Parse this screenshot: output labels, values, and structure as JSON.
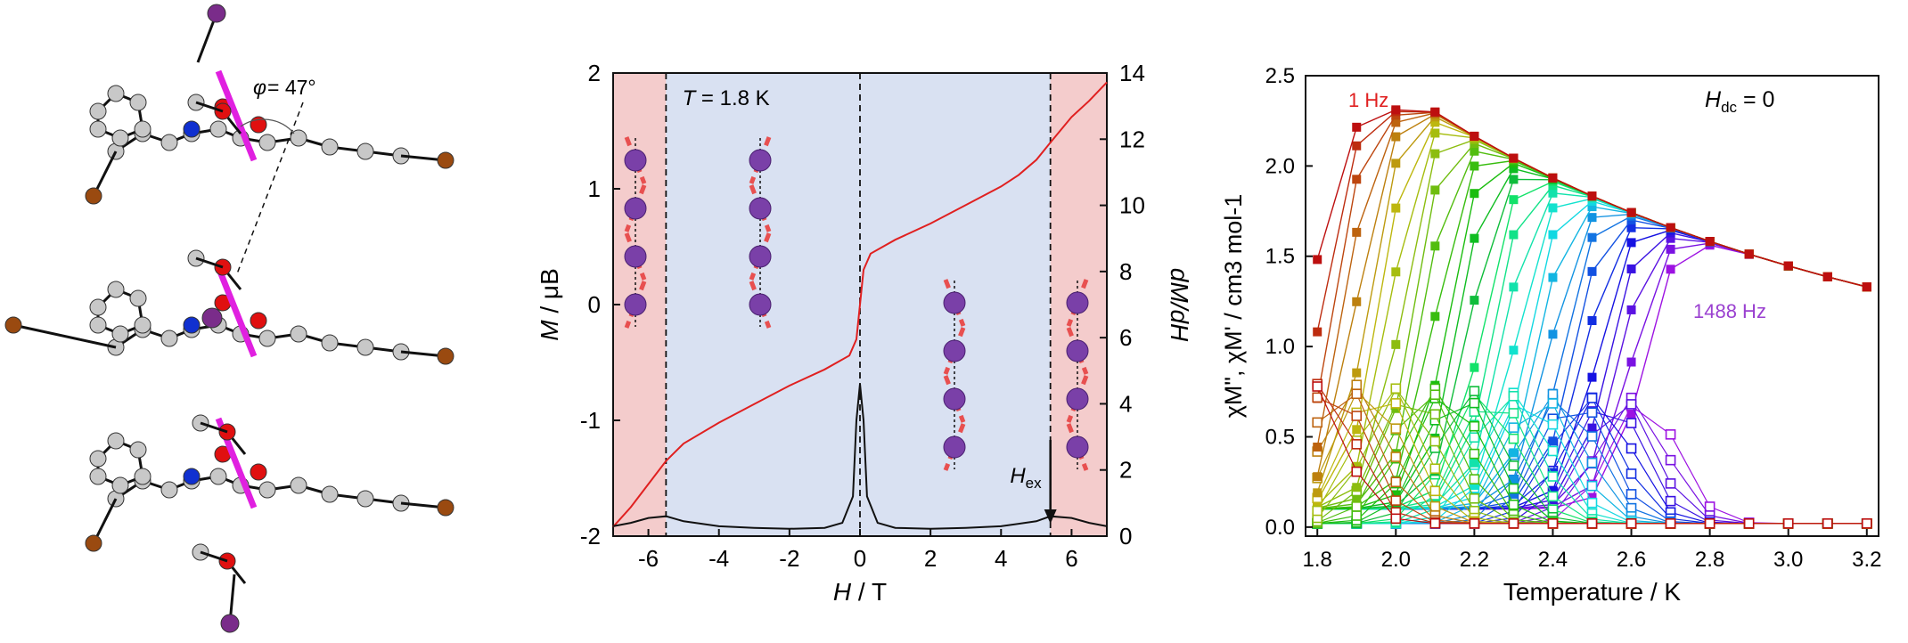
{
  "chart_data": [
    {
      "type": "line",
      "xlabel": "H / T",
      "ylabel_left": "M / μB",
      "ylabel_right": "dM/dH",
      "xlim": [
        -7,
        7
      ],
      "ylim_left": [
        -2,
        2
      ],
      "ylim_right": [
        0,
        14
      ],
      "xticks": [
        -6,
        -4,
        -2,
        0,
        2,
        4,
        6
      ],
      "yticks_left": [
        -2,
        -1,
        0,
        1,
        2
      ],
      "yticks_right": [
        0,
        2,
        4,
        6,
        8,
        10,
        12,
        14
      ],
      "annotation_temperature": "T = 1.8 K",
      "annotation_hex": "H",
      "annotation_hex_sub": "ex",
      "regions": [
        {
          "from": -7,
          "to": -5.5,
          "color": "#f4cccc"
        },
        {
          "from": -5.5,
          "to": 5.4,
          "color": "#d9e1f2"
        },
        {
          "from": 5.4,
          "to": 7,
          "color": "#f4cccc"
        }
      ],
      "dashed_lines_x": [
        -5.5,
        0,
        5.4
      ],
      "series": [
        {
          "color": "#e02020",
          "x": [
            -7,
            -6.5,
            -6,
            -5.5,
            -5,
            -4,
            -3,
            -2,
            -1,
            -0.3,
            -0.1,
            0,
            0.1,
            0.3,
            1,
            2,
            3,
            4,
            4.5,
            5,
            5.4,
            6,
            6.5,
            7
          ],
          "y": [
            -1.92,
            -1.75,
            -1.55,
            -1.35,
            -1.2,
            -1.02,
            -0.86,
            -0.7,
            -0.56,
            -0.44,
            -0.3,
            0,
            0.3,
            0.44,
            0.56,
            0.7,
            0.86,
            1.02,
            1.12,
            1.25,
            1.4,
            1.62,
            1.76,
            1.92
          ]
        },
        {
          "color": "#111111",
          "axis": "right",
          "x": [
            -7,
            -6.5,
            -6,
            -5.5,
            -5,
            -4,
            -3,
            -2,
            -1,
            -0.5,
            -0.2,
            -0.1,
            0,
            0.1,
            0.2,
            0.5,
            1,
            2,
            3,
            4,
            5,
            5.4,
            6,
            6.5,
            7
          ],
          "y": [
            0.3,
            0.4,
            0.55,
            0.6,
            0.45,
            0.3,
            0.25,
            0.22,
            0.25,
            0.4,
            1.2,
            3.5,
            4.6,
            3.5,
            1.2,
            0.4,
            0.25,
            0.22,
            0.25,
            0.3,
            0.45,
            0.6,
            0.55,
            0.4,
            0.3
          ]
        }
      ]
    },
    {
      "type": "scatter",
      "xlabel": "Temperature / K",
      "ylabel": "χM\", χM' / cm3 mol-1",
      "xlim": [
        1.77,
        3.23
      ],
      "ylim": [
        -0.05,
        2.5
      ],
      "xticks": [
        "1.8",
        "2.0",
        "2.2",
        "2.4",
        "2.6",
        "2.8",
        "3.0",
        "3.2"
      ],
      "yticks": [
        "0.0",
        "0.5",
        "1.0",
        "1.5",
        "2.0",
        "2.5"
      ],
      "label_low": "1 Hz",
      "label_high": "1488 Hz",
      "label_hdc": "H",
      "label_hdc_sub": "dc",
      "label_hdc_value": " = 0",
      "temperatures": [
        1.8,
        1.9,
        2.0,
        2.1,
        2.2,
        2.3,
        2.4,
        2.5,
        2.6,
        2.7,
        2.8,
        2.9,
        3.0,
        3.1,
        3.2
      ],
      "n_frequencies": 30,
      "color_low": "#e02020",
      "color_high": "#9a40d0"
    }
  ]
}
